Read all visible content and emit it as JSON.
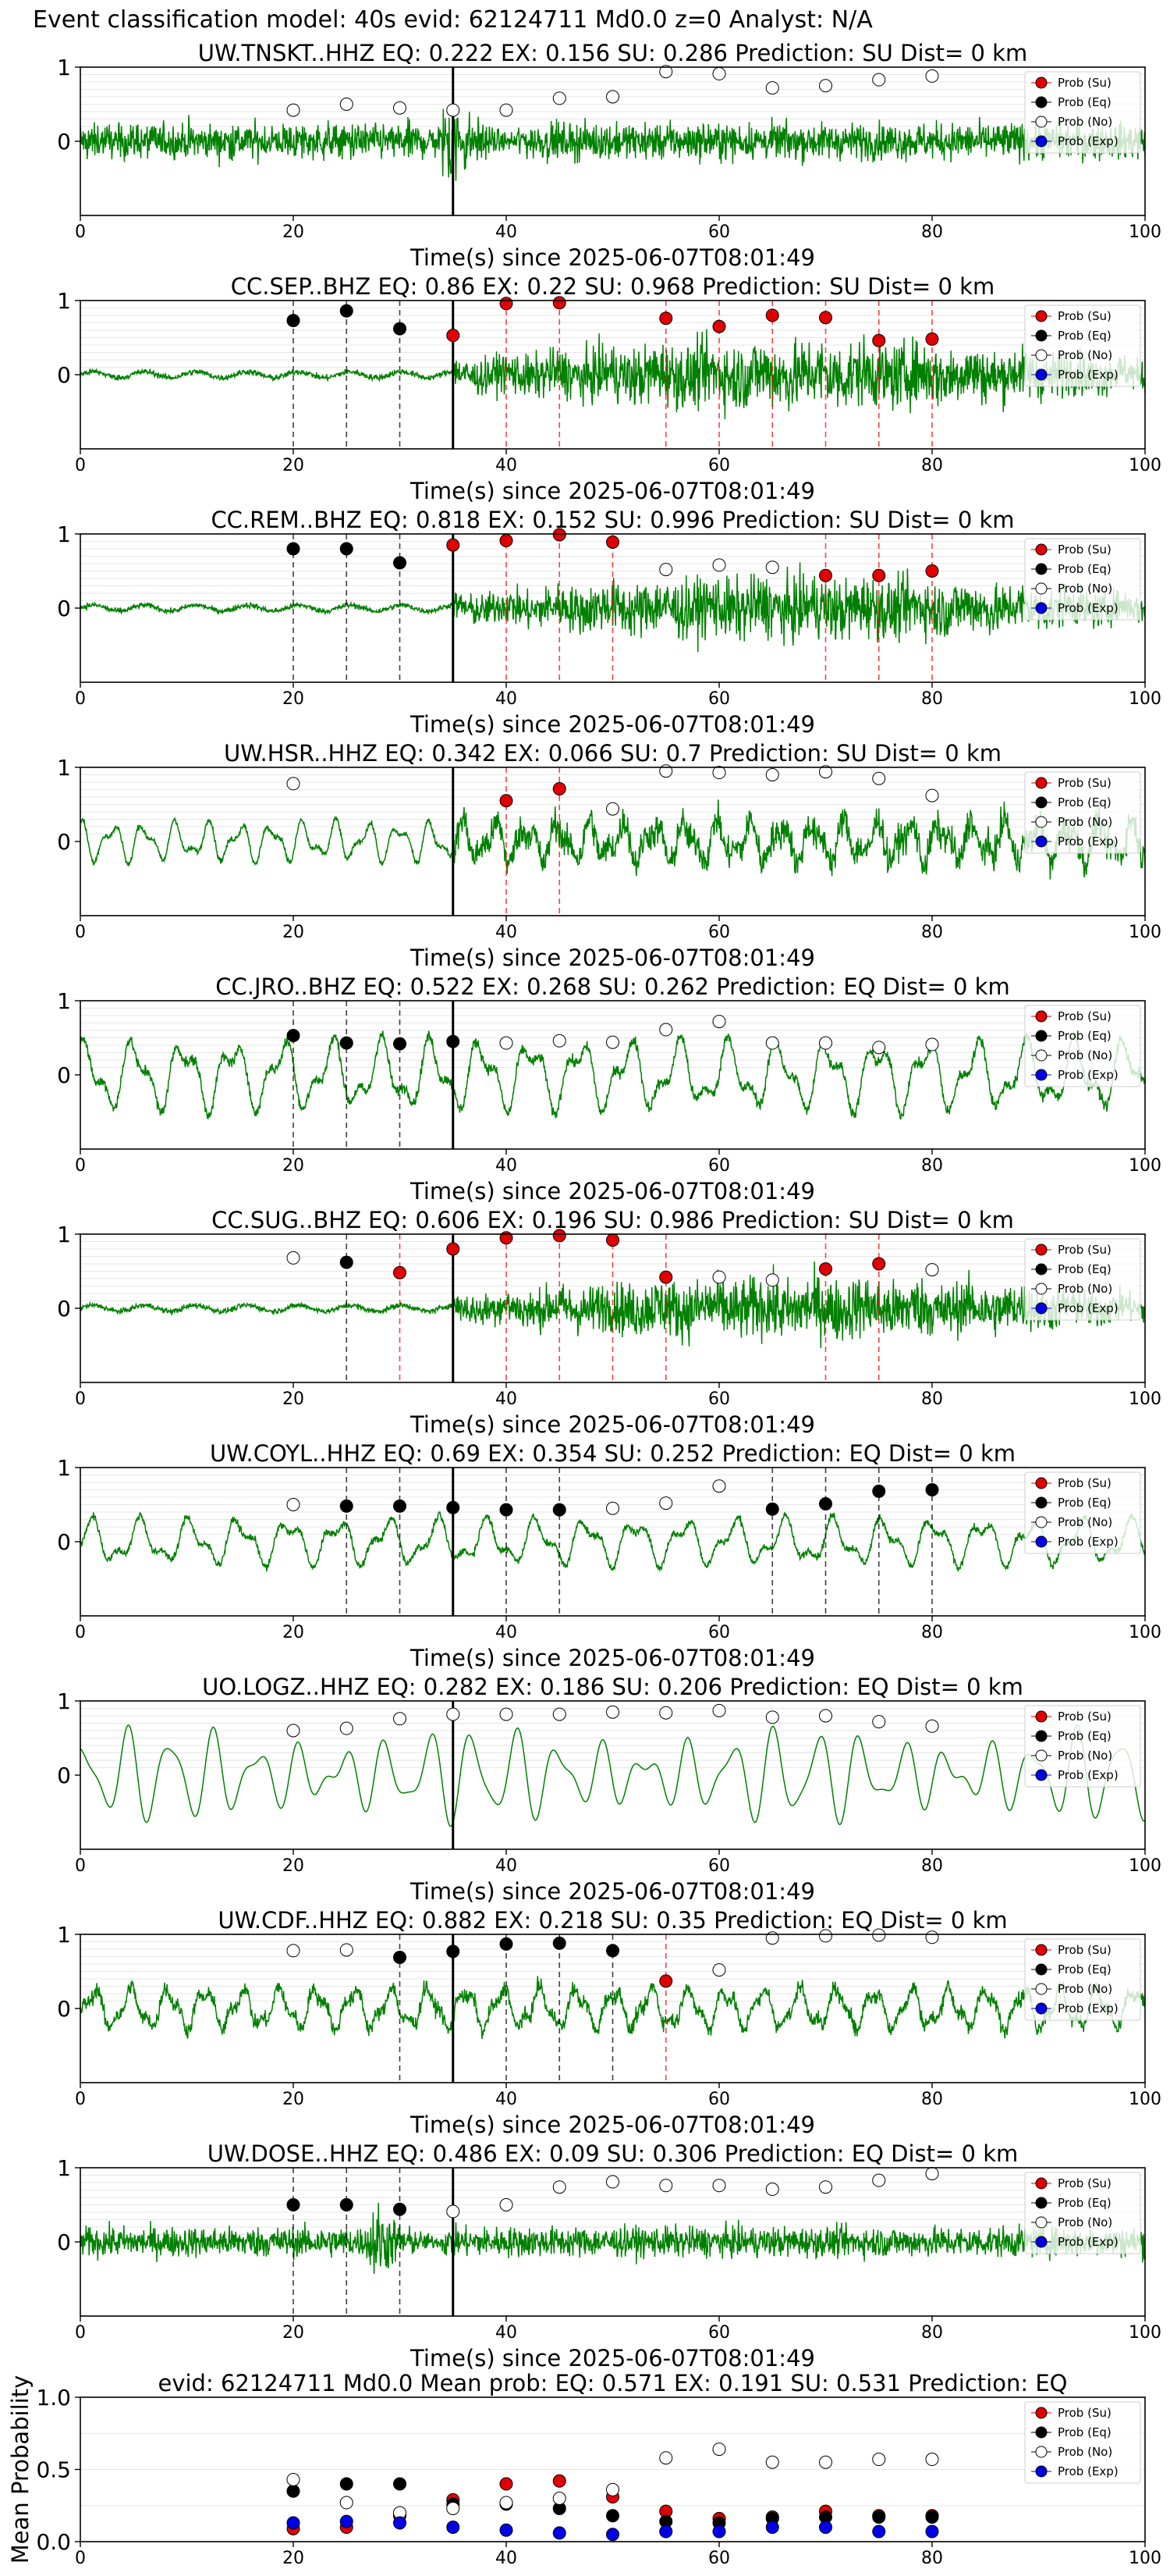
{
  "figure": {
    "title": "Event classification model: 40s evid: 62124711 Md0.0 z=0 Analyst: N/A"
  },
  "legend_labels": [
    "Prob (Su)",
    "Prob (Eq)",
    "Prob (No)",
    "Prob (Exp)"
  ],
  "colors": {
    "su": "#e00000",
    "eq": "#000000",
    "no": "#ffffff",
    "exp": "#0000e6",
    "waveform": "#008000",
    "su_line": "#ff0000",
    "eq_line": "#000000",
    "p_arrival_line": "#000000",
    "grid": "#e6e6e6"
  },
  "chart_data": [
    {
      "type": "scatter",
      "station": "UW.TNSKT..HHZ",
      "title": "UW.TNSKT..HHZ   EQ: 0.222  EX: 0.156  SU: 0.286   Prediction: SU    Dist= 0 km",
      "xlabel": "Time(s) since 2025-06-07T08:01:49",
      "xlim": [
        0,
        100
      ],
      "ylim": [
        -1,
        1
      ],
      "xticks": [
        "0",
        "20",
        "40",
        "60",
        "80",
        "100"
      ],
      "yticks": [
        "1",
        "0"
      ],
      "p_arrival": 35,
      "waveform": {
        "style": "noisy",
        "amplitude": 0.42,
        "burst_at": 35
      },
      "points": [
        {
          "t": 20,
          "p": 0.42,
          "cls": "no"
        },
        {
          "t": 25,
          "p": 0.5,
          "cls": "no"
        },
        {
          "t": 30,
          "p": 0.45,
          "cls": "no"
        },
        {
          "t": 35,
          "p": 0.42,
          "cls": "no"
        },
        {
          "t": 40,
          "p": 0.42,
          "cls": "no"
        },
        {
          "t": 45,
          "p": 0.58,
          "cls": "no"
        },
        {
          "t": 50,
          "p": 0.6,
          "cls": "no"
        },
        {
          "t": 55,
          "p": 0.94,
          "cls": "no"
        },
        {
          "t": 60,
          "p": 0.91,
          "cls": "no"
        },
        {
          "t": 65,
          "p": 0.72,
          "cls": "no"
        },
        {
          "t": 70,
          "p": 0.75,
          "cls": "no"
        },
        {
          "t": 75,
          "p": 0.83,
          "cls": "no"
        },
        {
          "t": 80,
          "p": 0.88,
          "cls": "no"
        }
      ]
    },
    {
      "type": "scatter",
      "station": "CC.SEP..BHZ",
      "title": "CC.SEP..BHZ   EQ: 0.86  EX: 0.22  SU: 0.968   Prediction: SU    Dist= 0 km",
      "xlabel": "Time(s) since 2025-06-07T08:01:49",
      "xlim": [
        0,
        100
      ],
      "ylim": [
        -1,
        1
      ],
      "xticks": [
        "0",
        "20",
        "40",
        "60",
        "80",
        "100"
      ],
      "yticks": [
        "1",
        "0"
      ],
      "p_arrival": 35,
      "waveform": {
        "style": "quiet_then_strong",
        "amplitude": 0.55,
        "onset": 35
      },
      "points": [
        {
          "t": 20,
          "p": 0.73,
          "cls": "eq"
        },
        {
          "t": 25,
          "p": 0.86,
          "cls": "eq"
        },
        {
          "t": 30,
          "p": 0.62,
          "cls": "eq"
        },
        {
          "t": 35,
          "p": 0.53,
          "cls": "su"
        },
        {
          "t": 40,
          "p": 0.96,
          "cls": "su"
        },
        {
          "t": 45,
          "p": 0.97,
          "cls": "su"
        },
        {
          "t": 55,
          "p": 0.76,
          "cls": "su"
        },
        {
          "t": 60,
          "p": 0.65,
          "cls": "su"
        },
        {
          "t": 65,
          "p": 0.8,
          "cls": "su"
        },
        {
          "t": 70,
          "p": 0.77,
          "cls": "su"
        },
        {
          "t": 75,
          "p": 0.46,
          "cls": "su"
        },
        {
          "t": 80,
          "p": 0.48,
          "cls": "su"
        }
      ]
    },
    {
      "type": "scatter",
      "station": "CC.REM..BHZ",
      "title": "CC.REM..BHZ   EQ: 0.818  EX: 0.152  SU: 0.996   Prediction: SU    Dist= 0 km",
      "xlabel": "Time(s) since 2025-06-07T08:01:49",
      "xlim": [
        0,
        100
      ],
      "ylim": [
        -1,
        1
      ],
      "xticks": [
        "0",
        "20",
        "40",
        "60",
        "80",
        "100"
      ],
      "yticks": [
        "1",
        "0"
      ],
      "p_arrival": 35,
      "waveform": {
        "style": "quiet_then_strong",
        "amplitude": 0.5,
        "onset": 35
      },
      "points": [
        {
          "t": 20,
          "p": 0.8,
          "cls": "eq"
        },
        {
          "t": 25,
          "p": 0.8,
          "cls": "eq"
        },
        {
          "t": 30,
          "p": 0.61,
          "cls": "eq"
        },
        {
          "t": 35,
          "p": 0.85,
          "cls": "su"
        },
        {
          "t": 40,
          "p": 0.91,
          "cls": "su"
        },
        {
          "t": 45,
          "p": 0.99,
          "cls": "su"
        },
        {
          "t": 50,
          "p": 0.89,
          "cls": "su"
        },
        {
          "t": 55,
          "p": 0.52,
          "cls": "no"
        },
        {
          "t": 60,
          "p": 0.58,
          "cls": "no"
        },
        {
          "t": 65,
          "p": 0.55,
          "cls": "no"
        },
        {
          "t": 70,
          "p": 0.44,
          "cls": "su"
        },
        {
          "t": 75,
          "p": 0.44,
          "cls": "su"
        },
        {
          "t": 80,
          "p": 0.5,
          "cls": "su"
        }
      ]
    },
    {
      "type": "scatter",
      "station": "UW.HSR..HHZ",
      "title": "UW.HSR..HHZ   EQ: 0.342  EX: 0.066  SU: 0.7    Prediction: SU    Dist= 0 km",
      "xlabel": "Time(s) since 2025-06-07T08:01:49",
      "xlim": [
        0,
        100
      ],
      "ylim": [
        -1,
        1
      ],
      "xticks": [
        "0",
        "20",
        "40",
        "60",
        "80",
        "100"
      ],
      "yticks": [
        "1",
        "0"
      ],
      "p_arrival": 35,
      "waveform": {
        "style": "wavy_then_noisy",
        "amplitude": 0.45,
        "onset": 35
      },
      "points": [
        {
          "t": 20,
          "p": 0.78,
          "cls": "no"
        },
        {
          "t": 40,
          "p": 0.55,
          "cls": "su"
        },
        {
          "t": 45,
          "p": 0.71,
          "cls": "su"
        },
        {
          "t": 50,
          "p": 0.44,
          "cls": "no"
        },
        {
          "t": 55,
          "p": 0.95,
          "cls": "no"
        },
        {
          "t": 60,
          "p": 0.93,
          "cls": "no"
        },
        {
          "t": 65,
          "p": 0.9,
          "cls": "no"
        },
        {
          "t": 70,
          "p": 0.94,
          "cls": "no"
        },
        {
          "t": 75,
          "p": 0.85,
          "cls": "no"
        },
        {
          "t": 80,
          "p": 0.62,
          "cls": "no"
        }
      ]
    },
    {
      "type": "scatter",
      "station": "CC.JRO..BHZ",
      "title": "CC.JRO..BHZ   EQ: 0.522  EX: 0.268  SU: 0.262   Prediction: EQ    Dist= 0 km",
      "xlabel": "Time(s) since 2025-06-07T08:01:49",
      "xlim": [
        0,
        100
      ],
      "ylim": [
        -1,
        1
      ],
      "xticks": [
        "0",
        "20",
        "40",
        "60",
        "80",
        "100"
      ],
      "yticks": [
        "1",
        "0"
      ],
      "p_arrival": 35,
      "waveform": {
        "style": "wavy",
        "amplitude": 0.6
      },
      "points": [
        {
          "t": 20,
          "p": 0.53,
          "cls": "eq"
        },
        {
          "t": 25,
          "p": 0.43,
          "cls": "eq"
        },
        {
          "t": 30,
          "p": 0.42,
          "cls": "eq"
        },
        {
          "t": 35,
          "p": 0.45,
          "cls": "eq"
        },
        {
          "t": 40,
          "p": 0.43,
          "cls": "no"
        },
        {
          "t": 45,
          "p": 0.46,
          "cls": "no"
        },
        {
          "t": 50,
          "p": 0.44,
          "cls": "no"
        },
        {
          "t": 55,
          "p": 0.61,
          "cls": "no"
        },
        {
          "t": 60,
          "p": 0.72,
          "cls": "no"
        },
        {
          "t": 65,
          "p": 0.43,
          "cls": "no"
        },
        {
          "t": 70,
          "p": 0.43,
          "cls": "no"
        },
        {
          "t": 75,
          "p": 0.37,
          "cls": "no"
        },
        {
          "t": 80,
          "p": 0.41,
          "cls": "no"
        }
      ]
    },
    {
      "type": "scatter",
      "station": "CC.SUG..BHZ",
      "title": "CC.SUG..BHZ   EQ: 0.606  EX: 0.196  SU: 0.986   Prediction: SU    Dist= 0 km",
      "xlabel": "Time(s) since 2025-06-07T08:01:49",
      "xlim": [
        0,
        100
      ],
      "ylim": [
        -1,
        1
      ],
      "xticks": [
        "0",
        "20",
        "40",
        "60",
        "80",
        "100"
      ],
      "yticks": [
        "1",
        "0"
      ],
      "p_arrival": 35,
      "waveform": {
        "style": "quiet_then_strong",
        "amplitude": 0.5,
        "onset": 35
      },
      "points": [
        {
          "t": 20,
          "p": 0.68,
          "cls": "no"
        },
        {
          "t": 25,
          "p": 0.62,
          "cls": "eq"
        },
        {
          "t": 30,
          "p": 0.48,
          "cls": "su"
        },
        {
          "t": 35,
          "p": 0.8,
          "cls": "su"
        },
        {
          "t": 40,
          "p": 0.95,
          "cls": "su"
        },
        {
          "t": 45,
          "p": 0.98,
          "cls": "su"
        },
        {
          "t": 50,
          "p": 0.92,
          "cls": "su"
        },
        {
          "t": 55,
          "p": 0.42,
          "cls": "su"
        },
        {
          "t": 60,
          "p": 0.42,
          "cls": "no"
        },
        {
          "t": 65,
          "p": 0.38,
          "cls": "no"
        },
        {
          "t": 70,
          "p": 0.53,
          "cls": "su"
        },
        {
          "t": 75,
          "p": 0.6,
          "cls": "su"
        },
        {
          "t": 80,
          "p": 0.52,
          "cls": "no"
        }
      ]
    },
    {
      "type": "scatter",
      "station": "UW.COYL..HHZ",
      "title": "UW.COYL..HHZ   EQ: 0.69  EX: 0.354  SU: 0.252   Prediction: EQ    Dist= 0 km",
      "xlabel": "Time(s) since 2025-06-07T08:01:49",
      "xlim": [
        0,
        100
      ],
      "ylim": [
        -1,
        1
      ],
      "xticks": [
        "0",
        "20",
        "40",
        "60",
        "80",
        "100"
      ],
      "yticks": [
        "1",
        "0"
      ],
      "p_arrival": 35,
      "waveform": {
        "style": "wavy",
        "amplitude": 0.4
      },
      "points": [
        {
          "t": 20,
          "p": 0.5,
          "cls": "no"
        },
        {
          "t": 25,
          "p": 0.48,
          "cls": "eq"
        },
        {
          "t": 30,
          "p": 0.48,
          "cls": "eq"
        },
        {
          "t": 35,
          "p": 0.46,
          "cls": "eq"
        },
        {
          "t": 40,
          "p": 0.43,
          "cls": "eq"
        },
        {
          "t": 45,
          "p": 0.43,
          "cls": "eq"
        },
        {
          "t": 50,
          "p": 0.45,
          "cls": "no"
        },
        {
          "t": 55,
          "p": 0.52,
          "cls": "no"
        },
        {
          "t": 60,
          "p": 0.75,
          "cls": "no"
        },
        {
          "t": 65,
          "p": 0.44,
          "cls": "eq"
        },
        {
          "t": 70,
          "p": 0.51,
          "cls": "eq"
        },
        {
          "t": 75,
          "p": 0.68,
          "cls": "eq"
        },
        {
          "t": 80,
          "p": 0.7,
          "cls": "eq"
        }
      ]
    },
    {
      "type": "scatter",
      "station": "UO.LOGZ..HHZ",
      "title": "UO.LOGZ..HHZ   EQ: 0.282  EX: 0.186  SU: 0.206   Prediction: EQ    Dist= 0 km",
      "xlabel": "Time(s) since 2025-06-07T08:01:49",
      "xlim": [
        0,
        100
      ],
      "ylim": [
        -1,
        1
      ],
      "xticks": [
        "0",
        "20",
        "40",
        "60",
        "80",
        "100"
      ],
      "yticks": [
        "1",
        "0"
      ],
      "p_arrival": 35,
      "waveform": {
        "style": "smooth",
        "amplitude": 0.75
      },
      "points": [
        {
          "t": 20,
          "p": 0.6,
          "cls": "no"
        },
        {
          "t": 25,
          "p": 0.63,
          "cls": "no"
        },
        {
          "t": 30,
          "p": 0.76,
          "cls": "no"
        },
        {
          "t": 35,
          "p": 0.82,
          "cls": "no"
        },
        {
          "t": 40,
          "p": 0.82,
          "cls": "no"
        },
        {
          "t": 45,
          "p": 0.82,
          "cls": "no"
        },
        {
          "t": 50,
          "p": 0.85,
          "cls": "no"
        },
        {
          "t": 55,
          "p": 0.84,
          "cls": "no"
        },
        {
          "t": 60,
          "p": 0.87,
          "cls": "no"
        },
        {
          "t": 65,
          "p": 0.78,
          "cls": "no"
        },
        {
          "t": 70,
          "p": 0.8,
          "cls": "no"
        },
        {
          "t": 75,
          "p": 0.72,
          "cls": "no"
        },
        {
          "t": 80,
          "p": 0.66,
          "cls": "no"
        }
      ]
    },
    {
      "type": "scatter",
      "station": "UW.CDF..HHZ",
      "title": "UW.CDF..HHZ   EQ: 0.882  EX: 0.218  SU: 0.35   Prediction: EQ    Dist= 0 km",
      "xlabel": "Time(s) since 2025-06-07T08:01:49",
      "xlim": [
        0,
        100
      ],
      "ylim": [
        -1,
        1
      ],
      "xticks": [
        "0",
        "20",
        "40",
        "60",
        "80",
        "100"
      ],
      "yticks": [
        "1",
        "0"
      ],
      "p_arrival": 35,
      "waveform": {
        "style": "wavy_noisy",
        "amplitude": 0.45
      },
      "points": [
        {
          "t": 20,
          "p": 0.78,
          "cls": "no"
        },
        {
          "t": 25,
          "p": 0.79,
          "cls": "no"
        },
        {
          "t": 30,
          "p": 0.69,
          "cls": "eq"
        },
        {
          "t": 35,
          "p": 0.77,
          "cls": "eq"
        },
        {
          "t": 40,
          "p": 0.87,
          "cls": "eq"
        },
        {
          "t": 45,
          "p": 0.88,
          "cls": "eq"
        },
        {
          "t": 50,
          "p": 0.78,
          "cls": "eq"
        },
        {
          "t": 55,
          "p": 0.37,
          "cls": "su"
        },
        {
          "t": 60,
          "p": 0.52,
          "cls": "no"
        },
        {
          "t": 65,
          "p": 0.95,
          "cls": "no"
        },
        {
          "t": 70,
          "p": 0.98,
          "cls": "no"
        },
        {
          "t": 75,
          "p": 0.99,
          "cls": "no"
        },
        {
          "t": 80,
          "p": 0.96,
          "cls": "no"
        }
      ]
    },
    {
      "type": "scatter",
      "station": "UW.DOSE..HHZ",
      "title": "UW.DOSE..HHZ   EQ: 0.486  EX: 0.09  SU: 0.306   Prediction: EQ    Dist= 0 km",
      "xlabel": "Time(s) since 2025-06-07T08:01:49",
      "xlim": [
        0,
        100
      ],
      "ylim": [
        -1,
        1
      ],
      "xticks": [
        "0",
        "20",
        "40",
        "60",
        "80",
        "100"
      ],
      "yticks": [
        "1",
        "0"
      ],
      "p_arrival": 35,
      "waveform": {
        "style": "noisy",
        "amplitude": 0.35,
        "burst_at": 28
      },
      "points": [
        {
          "t": 20,
          "p": 0.5,
          "cls": "eq"
        },
        {
          "t": 25,
          "p": 0.5,
          "cls": "eq"
        },
        {
          "t": 30,
          "p": 0.44,
          "cls": "eq"
        },
        {
          "t": 35,
          "p": 0.41,
          "cls": "no"
        },
        {
          "t": 40,
          "p": 0.5,
          "cls": "no"
        },
        {
          "t": 45,
          "p": 0.74,
          "cls": "no"
        },
        {
          "t": 50,
          "p": 0.81,
          "cls": "no"
        },
        {
          "t": 55,
          "p": 0.76,
          "cls": "no"
        },
        {
          "t": 60,
          "p": 0.76,
          "cls": "no"
        },
        {
          "t": 65,
          "p": 0.71,
          "cls": "no"
        },
        {
          "t": 70,
          "p": 0.74,
          "cls": "no"
        },
        {
          "t": 75,
          "p": 0.83,
          "cls": "no"
        },
        {
          "t": 80,
          "p": 0.92,
          "cls": "no"
        }
      ]
    },
    {
      "type": "scatter",
      "station": "mean",
      "title": "evid: 62124711  Md0.0   Mean prob:   EQ: 0.571  EX: 0.191  SU: 0.531   Prediction: EQ",
      "xlabel": "",
      "ylabel": "Mean Probability",
      "xlim": [
        0,
        100
      ],
      "ylim": [
        0,
        1
      ],
      "xticks": [
        "0",
        "20",
        "40",
        "60",
        "80",
        "100"
      ],
      "yticks": [
        "1.0",
        "0.5",
        "0.0"
      ],
      "times": [
        20,
        25,
        30,
        35,
        40,
        45,
        50,
        55,
        60,
        65,
        70,
        75,
        80
      ],
      "series": [
        {
          "name": "Prob (Su)",
          "cls": "su",
          "values": [
            0.09,
            0.1,
            0.18,
            0.29,
            0.4,
            0.42,
            0.31,
            0.21,
            0.16,
            0.17,
            0.21,
            0.18,
            0.18
          ]
        },
        {
          "name": "Prob (Eq)",
          "cls": "eq",
          "values": [
            0.35,
            0.4,
            0.4,
            0.26,
            0.26,
            0.23,
            0.18,
            0.14,
            0.13,
            0.16,
            0.17,
            0.17,
            0.17
          ]
        },
        {
          "name": "Prob (No)",
          "cls": "no",
          "values": [
            0.43,
            0.27,
            0.2,
            0.23,
            0.27,
            0.3,
            0.36,
            0.58,
            0.64,
            0.55,
            0.55,
            0.57,
            0.57
          ]
        },
        {
          "name": "Prob (Exp)",
          "cls": "exp",
          "values": [
            0.13,
            0.14,
            0.13,
            0.1,
            0.08,
            0.06,
            0.05,
            0.07,
            0.07,
            0.1,
            0.1,
            0.07,
            0.07
          ]
        }
      ]
    }
  ]
}
